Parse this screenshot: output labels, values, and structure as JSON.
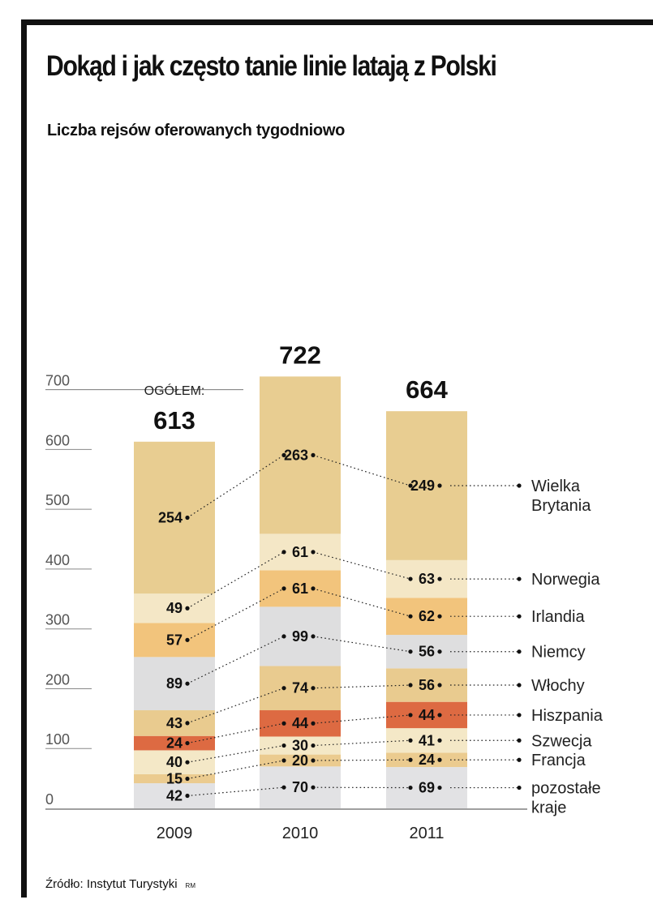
{
  "title": "Dokąd i jak często tanie linie latają z Polski",
  "subtitle": "Liczba rejsów oferowanych tygodniowo",
  "source": "Źródło: Instytut Turystyki",
  "source_tag": "RM",
  "chart_data": {
    "type": "bar",
    "stacked": true,
    "title": "Dokąd i jak często tanie linie latają z Polski",
    "subtitle": "Liczba rejsów oferowanych tygodniowo",
    "xlabel": "",
    "ylabel": "",
    "ylim": [
      0,
      700
    ],
    "yticks": [
      0,
      100,
      200,
      300,
      400,
      500,
      600,
      700
    ],
    "grid": false,
    "legend_position": "right",
    "total_prefix": "OGÓŁEM:",
    "categories": [
      "2009",
      "2010",
      "2011"
    ],
    "totals": [
      613,
      722,
      664
    ],
    "series": [
      {
        "name": "pozostałe kraje",
        "color": "#e2e2e4",
        "values": [
          42,
          70,
          69
        ]
      },
      {
        "name": "Francja",
        "color": "#ebcb8f",
        "values": [
          15,
          20,
          24
        ]
      },
      {
        "name": "Szwecja",
        "color": "#f4e8c7",
        "values": [
          40,
          30,
          41
        ]
      },
      {
        "name": "Hiszpania",
        "color": "#dd6a42",
        "values": [
          24,
          44,
          44
        ]
      },
      {
        "name": "Włochy",
        "color": "#e9cb8f",
        "values": [
          43,
          74,
          56
        ]
      },
      {
        "name": "Niemcy",
        "color": "#dededf",
        "values": [
          89,
          99,
          56
        ]
      },
      {
        "name": "Irlandia",
        "color": "#f2c47c",
        "values": [
          57,
          61,
          62
        ]
      },
      {
        "name": "Norwegia",
        "color": "#f4e7c6",
        "values": [
          49,
          61,
          63
        ]
      },
      {
        "name": "Wielka Brytania",
        "color": "#e8cd91",
        "values": [
          254,
          263,
          249
        ]
      }
    ]
  }
}
